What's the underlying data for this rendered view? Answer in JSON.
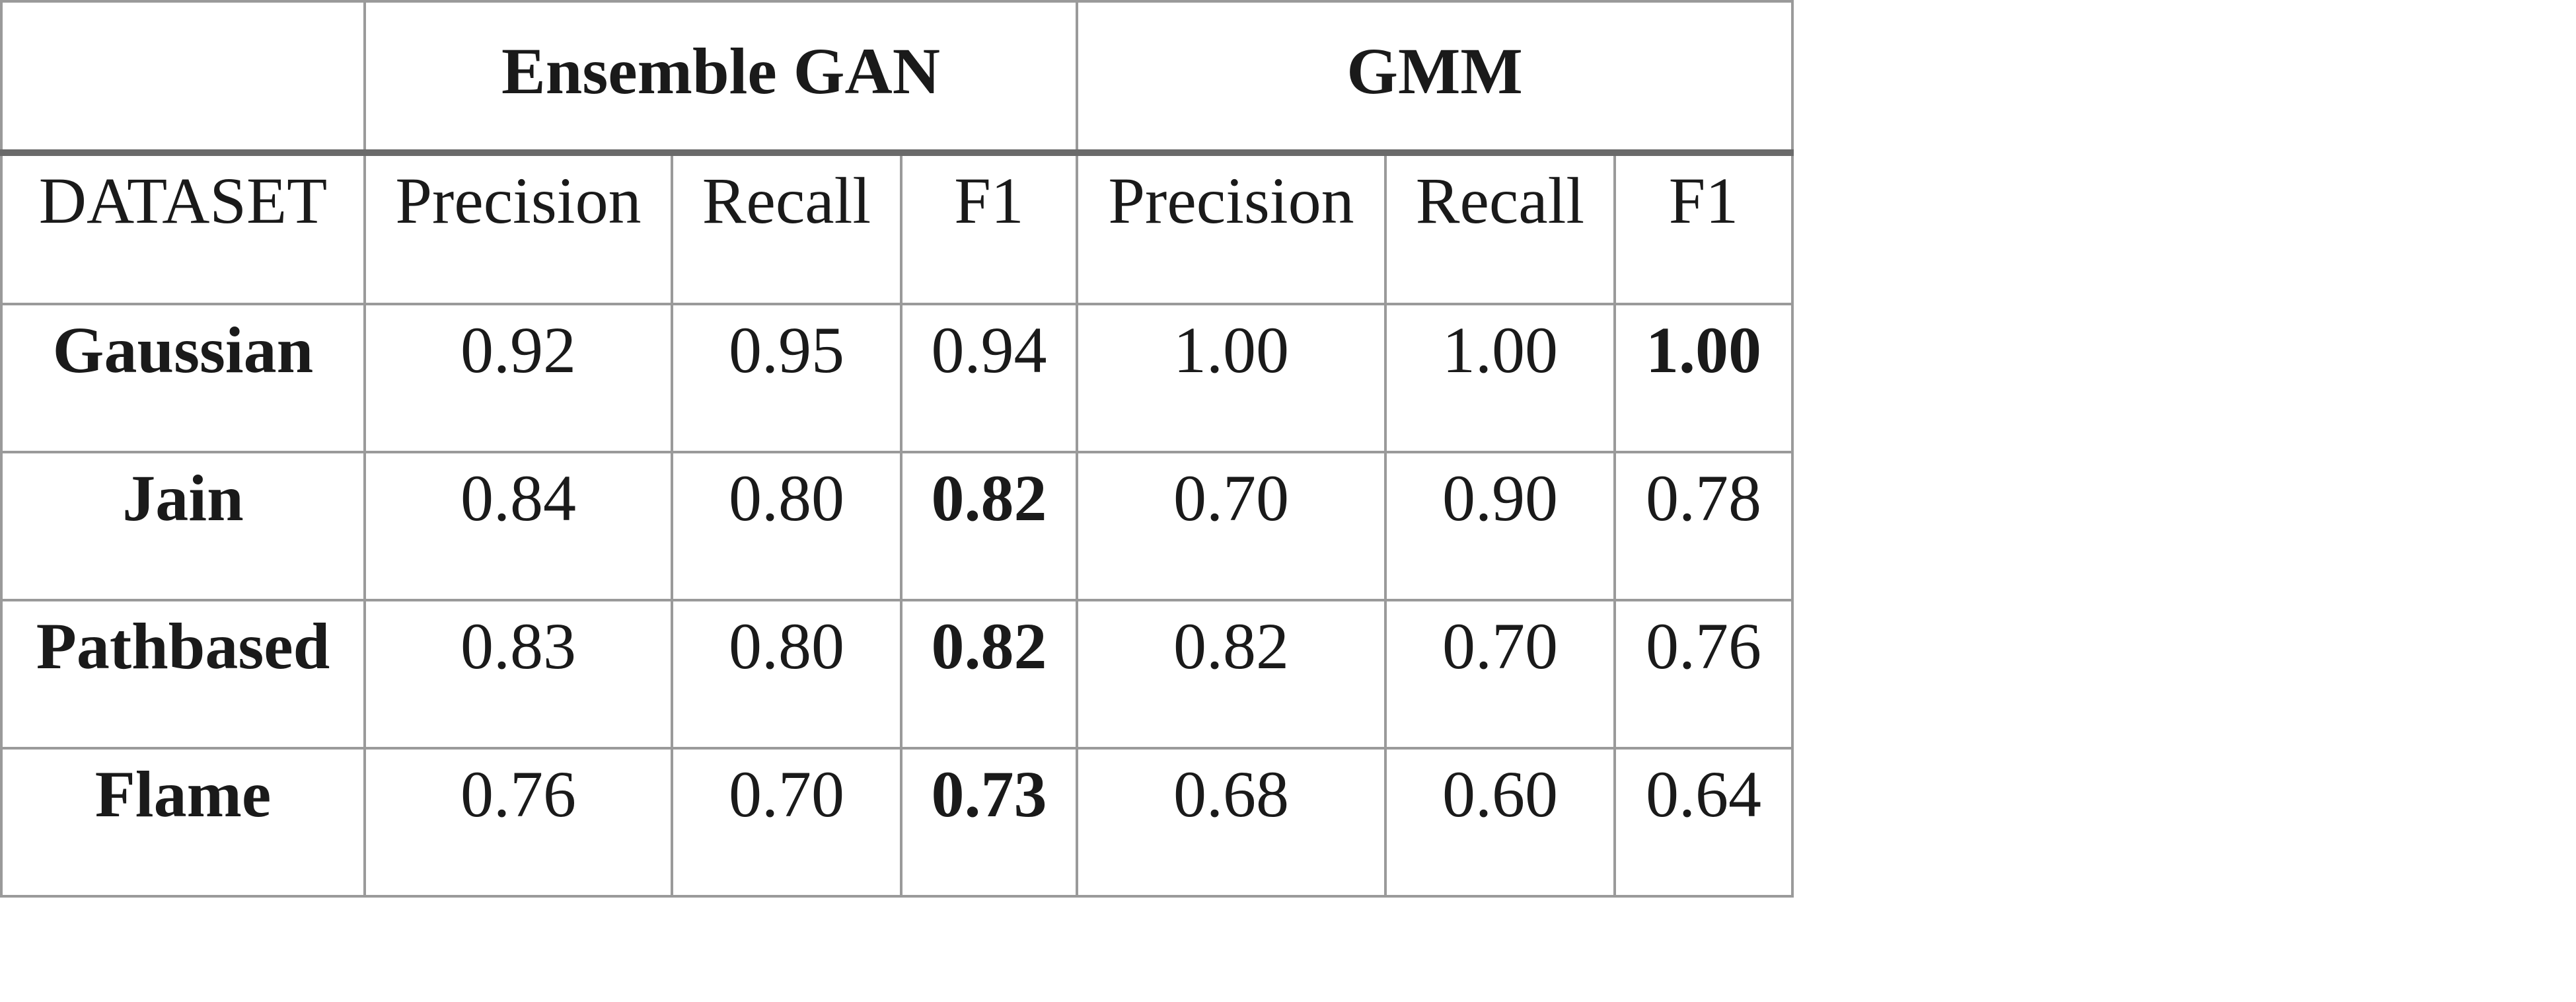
{
  "table": {
    "groups": [
      {
        "label": "Ensemble GAN",
        "span": 3
      },
      {
        "label": "GMM",
        "span": 3
      }
    ],
    "headers": [
      "DATASET",
      "Precision",
      "Recall",
      "F1",
      "Precision",
      "Recall",
      "F1"
    ],
    "rows": [
      {
        "dataset": "Gaussian",
        "values": [
          "0.92",
          "0.95",
          "0.94",
          "1.00",
          "1.00",
          "1.00"
        ],
        "bold": [
          false,
          false,
          false,
          false,
          false,
          true
        ]
      },
      {
        "dataset": "Jain",
        "values": [
          "0.84",
          "0.80",
          "0.82",
          "0.70",
          "0.90",
          "0.78"
        ],
        "bold": [
          false,
          false,
          true,
          false,
          false,
          false
        ]
      },
      {
        "dataset": "Pathbased",
        "values": [
          "0.83",
          "0.80",
          "0.82",
          "0.82",
          "0.70",
          "0.76"
        ],
        "bold": [
          false,
          false,
          true,
          false,
          false,
          false
        ]
      },
      {
        "dataset": "Flame",
        "values": [
          "0.76",
          "0.70",
          "0.73",
          "0.68",
          "0.60",
          "0.64"
        ],
        "bold": [
          false,
          false,
          true,
          false,
          false,
          false
        ]
      }
    ]
  }
}
